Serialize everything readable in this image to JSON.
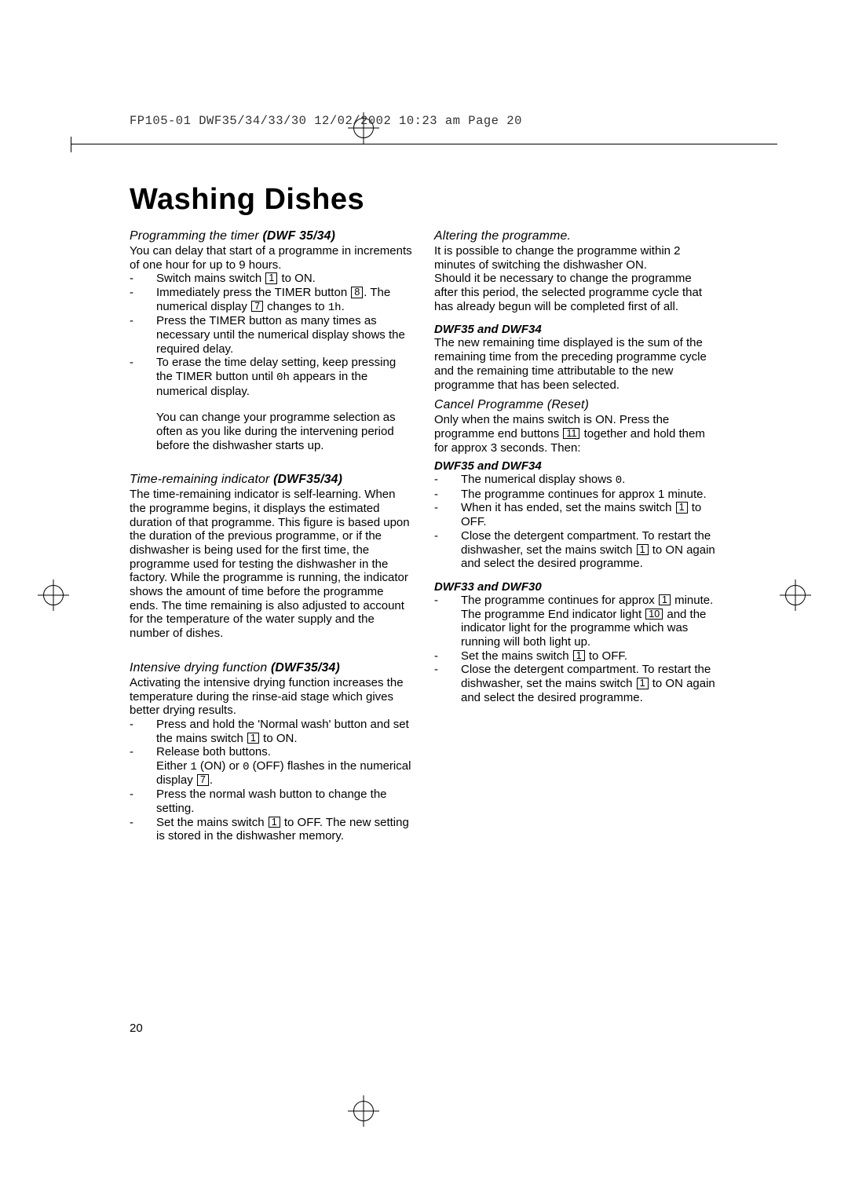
{
  "meta": {
    "header_slug": "FP105-01 DWF35/34/33/30 12/02/2002 10:23 am  Page 20"
  },
  "page_number": "20",
  "title": "Washing Dishes",
  "left": {
    "s1": {
      "head_prefix": "Programming the timer ",
      "head_bold": "(DWF 35/34)",
      "intro": "You can delay that start of a programme in increments of one hour for up to 9 hours.",
      "b1a": "Switch mains switch ",
      "b1_ref": "1",
      "b1b": " to ON.",
      "b2a": "Immediately press the TIMER button ",
      "b2_ref": "8",
      "b2b": ". The numerical display ",
      "b2_ref2": "7",
      "b2c": " changes to ",
      "b2_code": "1h",
      "b2d": ".",
      "b3": "Press the TIMER button as many times as necessary until the numerical display shows the required delay.",
      "b4a": "To erase the time delay setting, keep pressing the TIMER button until ",
      "b4_code": "0h",
      "b4b": " appears in the numerical display.",
      "note": "You can change your programme selection as often as you like during the intervening period before the dishwasher starts up."
    },
    "s2": {
      "head_prefix": "Time-remaining indicator ",
      "head_bold": "(DWF35/34)",
      "body": "The time-remaining indicator is self-learning. When the programme begins, it displays the estimated duration of that programme. This figure is based upon the duration of the previous programme, or if the dishwasher is being used for the first time, the programme used for testing the dishwasher in the factory. While the programme is running, the indicator shows the amount of time before the programme ends.  The time remaining is also adjusted to account for the temperature of the water supply and the number of dishes."
    },
    "s3": {
      "head_prefix": "Intensive drying function ",
      "head_bold": "(DWF35/34)",
      "intro": "Activating the intensive drying function increases the temperature during the rinse-aid stage which gives better drying results.",
      "b1a": "Press and hold the 'Normal wash' button and set the mains switch ",
      "b1_ref": "1",
      "b1b": " to ON.",
      "b2a": "Release both buttons.",
      "b2b": "Either ",
      "b2_code1": "1",
      "b2c": " (ON) or ",
      "b2_code2": "0",
      "b2d": " (OFF) flashes in the numerical display ",
      "b2_ref": "7",
      "b2e": ".",
      "b3": "Press the normal wash button to change the setting.",
      "b4a": "Set the mains switch ",
      "b4_ref": "1",
      "b4b": " to OFF. The new setting is stored in the dishwasher memory."
    }
  },
  "right": {
    "s1": {
      "head": "Altering the programme.",
      "p1": "It is possible to change the programme within 2 minutes of switching the dishwasher ON.",
      "p2": "Should it be necessary to change the programme after this period, the selected programme cycle that has already begun will be completed first of all.",
      "sub1": "DWF35 and DWF34",
      "p3": "The new remaining time displayed is the sum of the remaining time from the preceding programme cycle and the remaining time attributable to the new programme that has been selected."
    },
    "s2": {
      "head": "Cancel Programme (Reset)",
      "p1a": "Only when the mains switch is ON. Press the programme end buttons ",
      "p1_ref": "11",
      "p1b": " together and hold them for approx 3 seconds. Then:",
      "sub1": "DWF35 and DWF34",
      "a_b1a": "The numerical display shows ",
      "a_b1_code": "0",
      "a_b1b": ".",
      "a_b2": "The programme continues for approx 1 minute.",
      "a_b3a": "When it has ended, set the mains switch ",
      "a_b3_ref": "1",
      "a_b3b": " to OFF.",
      "a_b4a": "Close the detergent compartment. To restart the dishwasher, set the mains switch ",
      "a_b4_ref": "1",
      "a_b4b": " to ON again and select the desired programme.",
      "sub2": "DWF33 and DWF30",
      "b_b1a": "The programme continues for approx ",
      "b_b1_ref": "1",
      "b_b1b": " minute.",
      "b_b1c": "The programme End indicator light ",
      "b_b1_ref2": "10",
      "b_b1d": " and the indicator light for the programme which was running will both light up.",
      "b_b2a": "Set the mains switch ",
      "b_b2_ref": "1",
      "b_b2b": " to OFF.",
      "b_b3a": "Close the detergent compartment. To restart the dishwasher, set the mains switch ",
      "b_b3_ref": "1",
      "b_b3b": " to ON again and select the desired programme."
    }
  }
}
